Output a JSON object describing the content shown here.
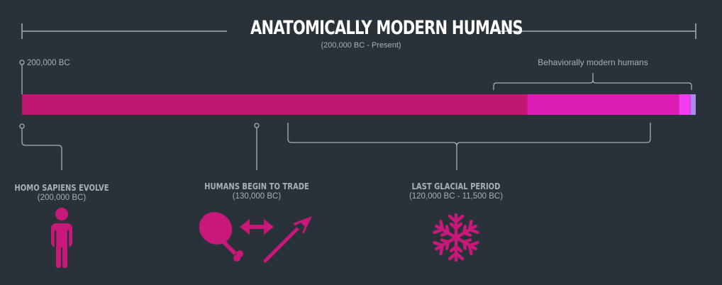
{
  "header": {
    "title": "ANATOMICALLY MODERN HUMANS",
    "subtitle": "(200,000 BC - Present)"
  },
  "timeline": {
    "start_label": "200,000 BC",
    "behavioral_label": "Behaviorally modern humans",
    "segments": [
      {
        "from_years_ago": 200000,
        "to_years_ago": 50000,
        "color": "#bf1872"
      },
      {
        "from_years_ago": 50000,
        "to_years_ago": 5000,
        "color": "#dd1cb4"
      },
      {
        "from_years_ago": 5000,
        "to_years_ago": 1500,
        "color": "#f23cf0"
      },
      {
        "from_years_ago": 1500,
        "to_years_ago": 0,
        "color": "#a98af0"
      }
    ]
  },
  "events": [
    {
      "title": "HOMO SAPIENS EVOLVE",
      "date": "(200,000 BC)",
      "icon": "person-icon"
    },
    {
      "title": "HUMANS BEGIN TO TRADE",
      "date": "(130,000 BC)",
      "icon": "trade-icon"
    },
    {
      "title": "LAST GLACIAL PERIOD",
      "date": "(120,000 BC - 11,500 BC)",
      "icon": "snowflake-icon"
    }
  ],
  "colors": {
    "background": "#283238",
    "line": "#a8b0b5",
    "accent": "#c8187a"
  }
}
